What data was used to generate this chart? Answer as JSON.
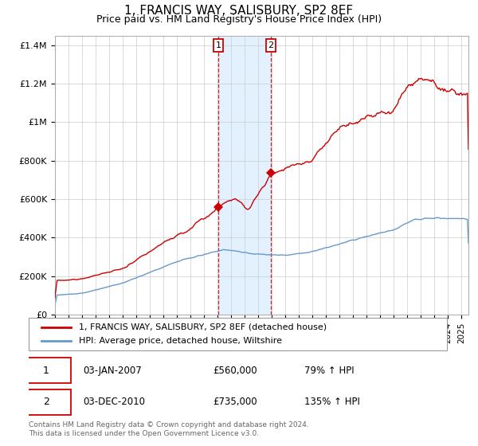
{
  "title": "1, FRANCIS WAY, SALISBURY, SP2 8EF",
  "subtitle": "Price paid vs. HM Land Registry's House Price Index (HPI)",
  "title_fontsize": 11,
  "subtitle_fontsize": 9,
  "legend_line1": "1, FRANCIS WAY, SALISBURY, SP2 8EF (detached house)",
  "legend_line2": "HPI: Average price, detached house, Wiltshire",
  "red_color": "#cc0000",
  "blue_color": "#6699cc",
  "grid_color": "#cccccc",
  "background_color": "#ffffff",
  "shade_color": "#ddeeff",
  "transaction1_date": 2007.04,
  "transaction1_price": 560000,
  "transaction2_date": 2010.92,
  "transaction2_price": 735000,
  "ylabel_ticks": [
    "£0",
    "£200K",
    "£400K",
    "£600K",
    "£800K",
    "£1M",
    "£1.2M",
    "£1.4M"
  ],
  "ylabel_values": [
    0,
    200000,
    400000,
    600000,
    800000,
    1000000,
    1200000,
    1400000
  ],
  "ylim": [
    0,
    1450000
  ],
  "xlim_start": 1995.0,
  "xlim_end": 2025.5,
  "footer": "Contains HM Land Registry data © Crown copyright and database right 2024.\nThis data is licensed under the Open Government Licence v3.0.",
  "table_row1": [
    "1",
    "03-JAN-2007",
    "£560,000",
    "79% ↑ HPI"
  ],
  "table_row2": [
    "2",
    "03-DEC-2010",
    "£735,000",
    "135% ↑ HPI"
  ]
}
